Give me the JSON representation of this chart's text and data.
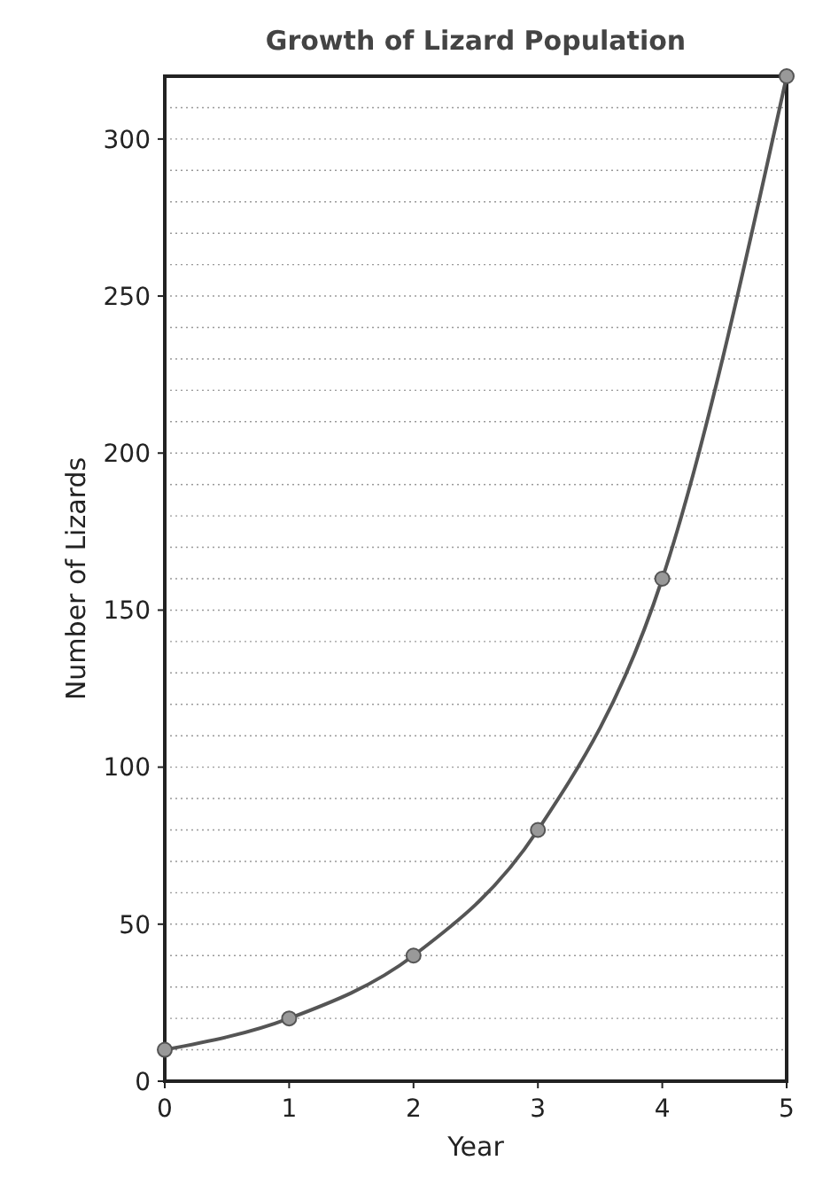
{
  "chart_data": {
    "type": "line",
    "title": "Growth of Lizard Population",
    "xlabel": "Year",
    "ylabel": "Number of Lizards",
    "x": [
      0,
      1,
      2,
      3,
      4,
      5
    ],
    "series": [
      {
        "color": "#555555",
        "values": [
          10,
          20,
          40,
          80,
          160,
          320
        ]
      }
    ],
    "xlim": [
      0,
      5
    ],
    "xticks": [
      0,
      1,
      2,
      3,
      4,
      5
    ],
    "ylim": [
      0,
      320
    ],
    "yticks": [
      0,
      {
        "value": 10,
        "label": null
      },
      {
        "value": 20,
        "label": null
      },
      {
        "value": 30,
        "label": null
      },
      {
        "value": 40,
        "label": null
      },
      50,
      {
        "value": 60,
        "label": null
      },
      {
        "value": 70,
        "label": null
      },
      {
        "value": 80,
        "label": null
      },
      {
        "value": 90,
        "label": null
      },
      100,
      {
        "value": 110,
        "label": null
      },
      {
        "value": 120,
        "label": null
      },
      {
        "value": 130,
        "label": null
      },
      {
        "value": 140,
        "label": null
      },
      150,
      {
        "value": 160,
        "label": null
      },
      {
        "value": 170,
        "label": null
      },
      {
        "value": 180,
        "label": null
      },
      {
        "value": 190,
        "label": null
      },
      200,
      {
        "value": 210,
        "label": null
      },
      {
        "value": 220,
        "label": null
      },
      {
        "value": 230,
        "label": null
      },
      {
        "value": 240,
        "label": null
      },
      250,
      {
        "value": 260,
        "label": null
      },
      {
        "value": 270,
        "label": null
      },
      {
        "value": 280,
        "label": null
      },
      {
        "value": 290,
        "label": null
      },
      300,
      {
        "value": 310,
        "label": null
      }
    ],
    "grid": "y",
    "marker": "circle",
    "line_style": "solid"
  }
}
